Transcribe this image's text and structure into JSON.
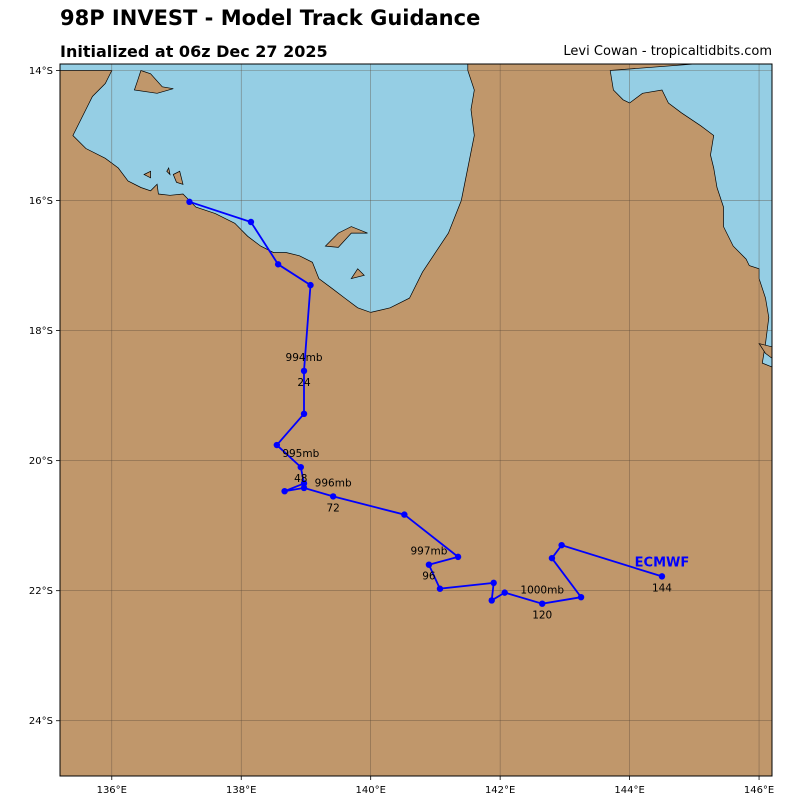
{
  "header": {
    "title": "98P INVEST - Model Track Guidance",
    "subtitle": "Initialized at 06z Dec 27 2025",
    "credit": "Levi Cowan - tropicaltidbits.com"
  },
  "map": {
    "lon_range": [
      135.2,
      146.2
    ],
    "lat_range": [
      -24.85,
      -13.9
    ],
    "colors": {
      "land": "#c0976b",
      "water": "#95cee4",
      "track": "#0000ff",
      "grid": "#5a4a3a"
    },
    "lon_ticks": [
      {
        "value": 136,
        "label": "136°E"
      },
      {
        "value": 138,
        "label": "138°E"
      },
      {
        "value": 140,
        "label": "140°E"
      },
      {
        "value": 142,
        "label": "142°E"
      },
      {
        "value": 144,
        "label": "144°E"
      },
      {
        "value": 146,
        "label": "146°E"
      }
    ],
    "lat_ticks": [
      {
        "value": -14,
        "label": "14°S"
      },
      {
        "value": -16,
        "label": "16°S"
      },
      {
        "value": -18,
        "label": "18°S"
      },
      {
        "value": -20,
        "label": "20°S"
      },
      {
        "value": -22,
        "label": "22°S"
      },
      {
        "value": -24,
        "label": "24°S"
      }
    ],
    "gulf_coast": [
      [
        136.0,
        -14.0
      ],
      [
        135.9,
        -14.2
      ],
      [
        135.7,
        -14.4
      ],
      [
        135.6,
        -14.6
      ],
      [
        135.5,
        -14.8
      ],
      [
        135.4,
        -15.0
      ],
      [
        135.6,
        -15.2
      ],
      [
        135.9,
        -15.35
      ],
      [
        136.1,
        -15.5
      ],
      [
        136.25,
        -15.7
      ],
      [
        136.45,
        -15.8
      ],
      [
        136.6,
        -15.85
      ],
      [
        136.7,
        -15.75
      ],
      [
        136.72,
        -15.9
      ],
      [
        136.9,
        -15.92
      ],
      [
        137.1,
        -15.9
      ],
      [
        137.3,
        -16.1
      ],
      [
        137.6,
        -16.2
      ],
      [
        137.9,
        -16.35
      ],
      [
        138.1,
        -16.55
      ],
      [
        138.3,
        -16.7
      ],
      [
        138.5,
        -16.8
      ],
      [
        138.7,
        -16.8
      ],
      [
        138.9,
        -16.85
      ],
      [
        139.1,
        -16.95
      ],
      [
        139.2,
        -17.2
      ],
      [
        139.4,
        -17.35
      ],
      [
        139.6,
        -17.5
      ],
      [
        139.8,
        -17.65
      ],
      [
        140.0,
        -17.72
      ],
      [
        140.3,
        -17.65
      ],
      [
        140.6,
        -17.5
      ],
      [
        140.8,
        -17.1
      ],
      [
        141.0,
        -16.8
      ],
      [
        141.2,
        -16.5
      ],
      [
        141.4,
        -16.0
      ],
      [
        141.5,
        -15.5
      ],
      [
        141.6,
        -15.0
      ],
      [
        141.55,
        -14.6
      ],
      [
        141.6,
        -14.3
      ],
      [
        141.5,
        -14.0
      ]
    ],
    "east_coast": [
      [
        143.7,
        -14.0
      ],
      [
        143.75,
        -14.3
      ],
      [
        143.9,
        -14.45
      ],
      [
        144.0,
        -14.5
      ],
      [
        144.2,
        -14.35
      ],
      [
        144.5,
        -14.3
      ],
      [
        144.6,
        -14.5
      ],
      [
        144.8,
        -14.65
      ],
      [
        145.1,
        -14.85
      ],
      [
        145.3,
        -15.0
      ],
      [
        145.25,
        -15.3
      ],
      [
        145.3,
        -15.5
      ],
      [
        145.35,
        -15.8
      ],
      [
        145.45,
        -16.1
      ],
      [
        145.45,
        -16.4
      ],
      [
        145.6,
        -16.7
      ],
      [
        145.8,
        -16.9
      ],
      [
        145.85,
        -17.0
      ],
      [
        146.0,
        -17.05
      ],
      [
        146.0,
        -17.2
      ],
      [
        146.1,
        -17.5
      ],
      [
        146.15,
        -17.8
      ],
      [
        146.1,
        -18.2
      ],
      [
        146.05,
        -18.5
      ],
      [
        146.3,
        -18.6
      ],
      [
        146.3,
        -13.8
      ]
    ],
    "islands": [
      [
        [
          136.45,
          -14.0
        ],
        [
          136.4,
          -14.15
        ],
        [
          136.35,
          -14.3
        ],
        [
          136.7,
          -14.35
        ],
        [
          136.95,
          -14.28
        ],
        [
          136.78,
          -14.25
        ],
        [
          136.6,
          -14.05
        ]
      ],
      [
        [
          139.3,
          -16.7
        ],
        [
          139.5,
          -16.5
        ],
        [
          139.7,
          -16.4
        ],
        [
          139.95,
          -16.5
        ],
        [
          139.7,
          -16.5
        ],
        [
          139.5,
          -16.72
        ]
      ],
      [
        [
          139.7,
          -17.2
        ],
        [
          139.8,
          -17.05
        ],
        [
          139.9,
          -17.15
        ]
      ],
      [
        [
          136.5,
          -15.6
        ],
        [
          136.6,
          -15.55
        ],
        [
          136.6,
          -15.65
        ]
      ],
      [
        [
          136.95,
          -15.6
        ],
        [
          137.05,
          -15.55
        ],
        [
          137.1,
          -15.75
        ],
        [
          137.0,
          -15.72
        ]
      ],
      [
        [
          136.85,
          -15.55
        ],
        [
          136.88,
          -15.5
        ],
        [
          136.9,
          -15.6
        ]
      ],
      [
        [
          146.0,
          -18.2
        ],
        [
          146.2,
          -18.25
        ],
        [
          146.3,
          -18.5
        ],
        [
          146.1,
          -18.35
        ]
      ]
    ]
  },
  "track": {
    "model": "ECMWF",
    "points": [
      [
        137.2,
        -16.02
      ],
      [
        138.15,
        -16.33
      ],
      [
        138.57,
        -16.98
      ],
      [
        139.07,
        -17.3
      ],
      [
        138.97,
        -18.62
      ],
      [
        138.97,
        -19.28
      ],
      [
        138.55,
        -19.76
      ],
      [
        138.92,
        -20.1
      ],
      [
        138.97,
        -20.35
      ],
      [
        138.67,
        -20.47
      ],
      [
        138.97,
        -20.42
      ],
      [
        139.42,
        -20.55
      ],
      [
        140.52,
        -20.83
      ],
      [
        141.35,
        -21.48
      ],
      [
        140.9,
        -21.6
      ],
      [
        141.07,
        -21.97
      ],
      [
        141.9,
        -21.88
      ],
      [
        141.87,
        -22.15
      ],
      [
        142.07,
        -22.03
      ],
      [
        142.65,
        -22.2
      ],
      [
        143.25,
        -22.1
      ],
      [
        142.8,
        -21.5
      ],
      [
        142.95,
        -21.3
      ],
      [
        144.5,
        -21.78
      ]
    ],
    "annotations": [
      {
        "pressure": "994mb",
        "hour": "24",
        "lon": 138.97,
        "lat": -18.62
      },
      {
        "pressure": "995mb",
        "hour": "48",
        "lon": 138.92,
        "lat": -20.1
      },
      {
        "pressure": "996mb",
        "hour": "72",
        "lon": 139.42,
        "lat": -20.55
      },
      {
        "pressure": "997mb",
        "hour": "96",
        "lon": 140.9,
        "lat": -21.6
      },
      {
        "pressure": "1000mb",
        "hour": "120",
        "lon": 142.65,
        "lat": -22.2
      },
      {
        "pressure": "",
        "hour": "144",
        "lon": 144.5,
        "lat": -21.78
      }
    ]
  }
}
